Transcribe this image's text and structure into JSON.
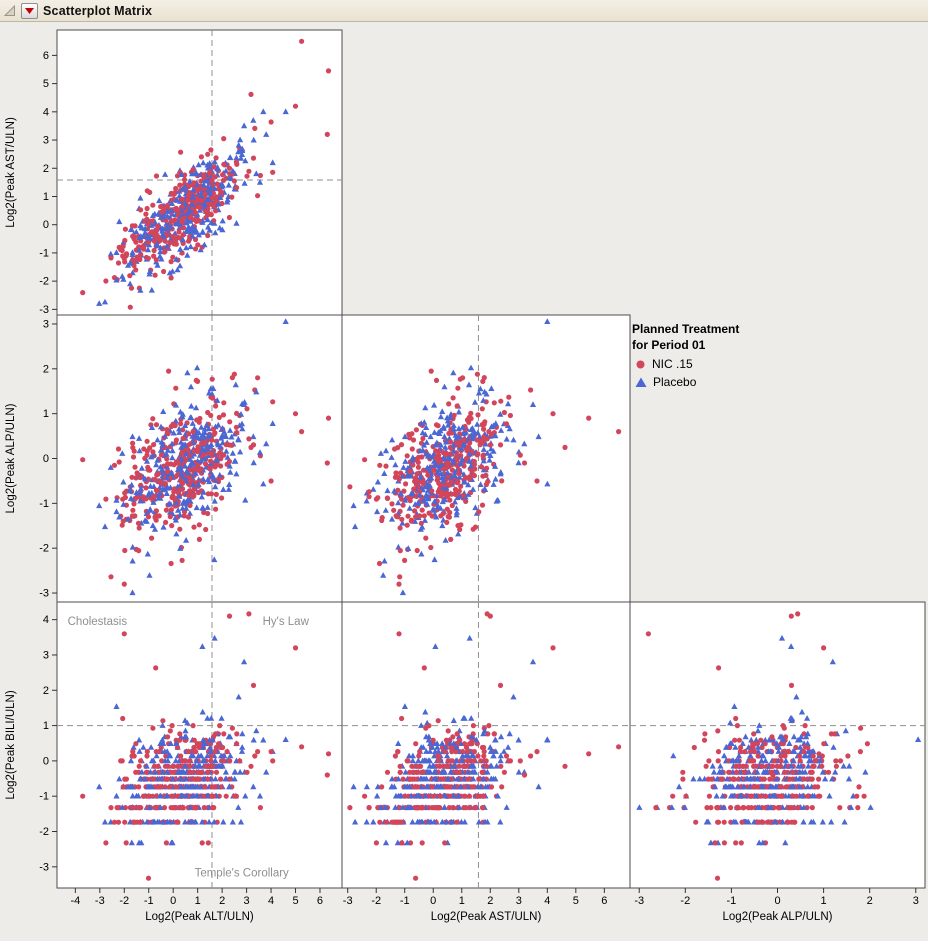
{
  "window": {
    "title": "Scatterplot Matrix"
  },
  "titlebar": {
    "red_triangle_color": "#C40000"
  },
  "legend": {
    "title_line1": "Planned Treatment",
    "title_line2": "for Period 01",
    "entries": [
      {
        "label": "NIC .15",
        "marker": "circle",
        "color": "#D2455A"
      },
      {
        "label": "Placebo",
        "marker": "triangle",
        "color": "#4A67D3"
      }
    ]
  },
  "chart_data": {
    "type": "scatter",
    "subtype": "scatterplot-matrix-lower-triangle",
    "title": "Scatterplot Matrix",
    "group_legend_title": "Planned Treatment for Period 01",
    "variables": {
      "alt": {
        "label": "Log2(Peak ALT/ULN)",
        "domain": [
          -4.75,
          6.9
        ],
        "ticks": [
          -4,
          -3,
          -2,
          -1,
          0,
          1,
          2,
          3,
          4,
          5,
          6
        ],
        "ref_line": 1.585
      },
      "ast": {
        "label": "Log2(Peak AST/ULN)",
        "domain": [
          -3.2,
          6.9
        ],
        "ticks": [
          -3,
          -2,
          -1,
          0,
          1,
          2,
          3,
          4,
          5,
          6
        ],
        "ref_line": 1.585
      },
      "alp": {
        "label": "Log2(Peak ALP/ULN)",
        "domain": [
          -3.2,
          3.2
        ],
        "ticks": [
          -3,
          -2,
          -1,
          0,
          1,
          2,
          3
        ],
        "ref_line": null
      },
      "bili": {
        "label": "Log2(Peak BILI/ULN)",
        "domain": [
          -3.6,
          4.5
        ],
        "ticks": [
          -3,
          -2,
          -1,
          0,
          1,
          2,
          3,
          4
        ],
        "ref_line": 1.0
      }
    },
    "panels": [
      {
        "x": "alt",
        "y": "ast",
        "col": 0,
        "row": 0
      },
      {
        "x": "alt",
        "y": "alp",
        "col": 0,
        "row": 1
      },
      {
        "x": "ast",
        "y": "alp",
        "col": 1,
        "row": 1
      },
      {
        "x": "alt",
        "y": "bili",
        "col": 0,
        "row": 2
      },
      {
        "x": "ast",
        "y": "bili",
        "col": 1,
        "row": 2
      },
      {
        "x": "alp",
        "y": "bili",
        "col": 2,
        "row": 2
      }
    ],
    "groups": [
      {
        "name": "NIC .15",
        "marker": "circle",
        "color": "#D2455A"
      },
      {
        "name": "Placebo",
        "marker": "triangle",
        "color": "#4A67D3"
      }
    ],
    "annotations": [
      {
        "text": "Cholestasis",
        "x": -3.1,
        "y": 3.85,
        "panel": "alt-bili"
      },
      {
        "text": "Hy's Law",
        "x": 4.6,
        "y": 3.85,
        "panel": "alt-bili"
      },
      {
        "text": "Temple's Corollary",
        "x": 2.8,
        "y": -3.28,
        "panel": "alt-bili"
      }
    ],
    "annotation_color": "#8F8F8F",
    "reference_line_color": "#8F8F8F",
    "points_spec": {
      "seed": 1376423,
      "n": 690,
      "alt": {
        "mean": 0.35,
        "factor": 1.05,
        "noise": 0.62
      },
      "ast": {
        "mean": 0.35,
        "factor": 0.92,
        "noise": 0.52
      },
      "alp": {
        "mean": -0.25,
        "factor": 0.42,
        "noise": 0.62
      },
      "bili": {
        "mean": -0.55,
        "factor": 0.28,
        "noise": 0.7
      },
      "bili_quantize_step": 0.1,
      "outlier_rate": 0.013
    },
    "outlier_points": [
      {
        "g": 0,
        "alt": 5.25,
        "ast": 6.5,
        "alp": 0.6,
        "bili": 0.4
      },
      {
        "g": 0,
        "alt": 6.35,
        "ast": 5.45,
        "alp": 0.9,
        "bili": 0.2
      },
      {
        "g": 1,
        "alt": 4.6,
        "ast": 4.0,
        "alp": 3.05,
        "bili": 0.6
      },
      {
        "g": 0,
        "alt": 2.3,
        "ast": 2.0,
        "alp": 0.3,
        "bili": 4.1
      },
      {
        "g": 0,
        "alt": -2.0,
        "ast": -1.2,
        "alp": -2.8,
        "bili": 3.6
      },
      {
        "g": 0,
        "alt": 5.0,
        "ast": 4.2,
        "alp": 1.0,
        "bili": 3.2
      },
      {
        "g": 1,
        "alt": 2.9,
        "ast": 3.5,
        "alp": 1.2,
        "bili": 2.8
      },
      {
        "g": 0,
        "alt": 6.3,
        "ast": 3.2,
        "alp": -0.1,
        "bili": -0.4
      }
    ]
  }
}
